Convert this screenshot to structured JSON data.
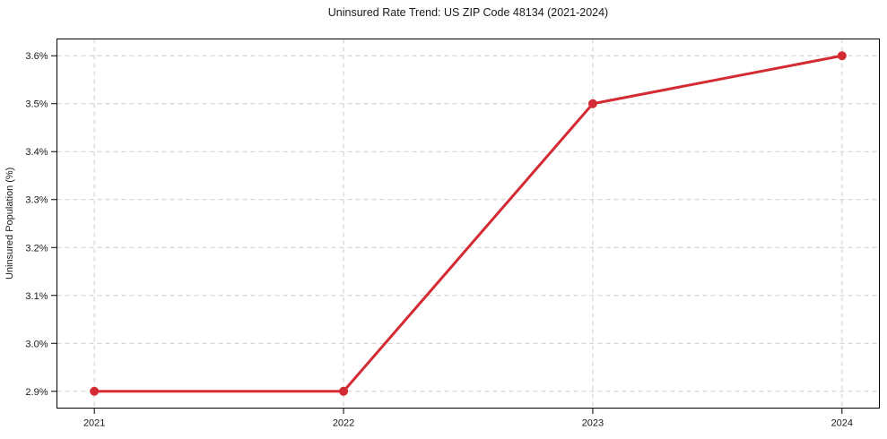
{
  "chart_data": {
    "type": "line",
    "title": "Uninsured Rate Trend: US ZIP Code 48134 (2021-2024)",
    "xlabel": "",
    "ylabel": "Uninsured Population (%)",
    "x": [
      2021,
      2022,
      2023,
      2024
    ],
    "values": [
      2.9,
      2.9,
      3.5,
      3.6
    ],
    "x_tick_labels": [
      "2021",
      "2022",
      "2023",
      "2024"
    ],
    "y_ticks": [
      2.9,
      3.0,
      3.1,
      3.2,
      3.3,
      3.4,
      3.5,
      3.6
    ],
    "y_tick_labels": [
      "2.9%",
      "3.0%",
      "3.1%",
      "3.2%",
      "3.3%",
      "3.4%",
      "3.5%",
      "3.6%"
    ],
    "xlim": [
      2020.85,
      2024.15
    ],
    "ylim": [
      2.865,
      3.635
    ],
    "grid": true,
    "legend": false,
    "style": {
      "line_color": "#d42a33",
      "marker": "circle",
      "marker_radius": 5,
      "line_width": 3,
      "grid_color": "#cccccc",
      "grid_dash": "5 4",
      "axis_color": "#000000",
      "text_color": "#1a1a1a",
      "background": "#ffffff",
      "tick_font_size": 11
    }
  }
}
